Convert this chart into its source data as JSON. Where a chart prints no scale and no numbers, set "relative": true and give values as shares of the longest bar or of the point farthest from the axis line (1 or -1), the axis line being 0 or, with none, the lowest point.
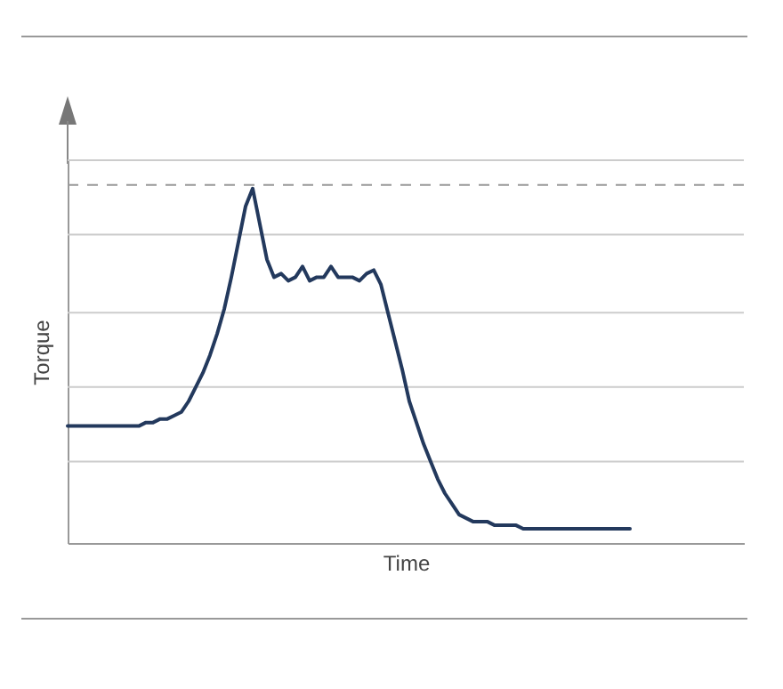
{
  "chart_data": {
    "type": "line",
    "xlabel": "Time",
    "ylabel": "Torque",
    "relative": true,
    "tick_labels": false,
    "line_style": "solid",
    "categories": [
      null,
      null,
      null,
      null,
      null,
      null,
      null,
      null,
      null,
      null,
      null,
      null,
      null,
      null,
      null,
      null,
      null,
      null,
      null,
      null,
      null,
      null,
      null,
      null,
      null,
      null,
      null,
      null,
      null,
      null,
      null,
      null,
      null,
      null,
      null,
      null,
      null,
      null,
      null,
      null,
      null,
      null,
      null,
      null,
      null,
      null,
      null,
      null,
      null,
      null,
      null,
      null,
      null,
      null,
      null,
      null,
      null,
      null,
      null,
      null,
      null,
      null,
      null,
      null,
      null,
      null,
      null,
      null,
      null,
      null,
      null,
      null,
      null,
      null,
      null,
      null,
      null,
      null,
      null,
      null,
      null,
      null,
      null,
      null,
      null,
      null,
      null,
      null,
      null,
      null,
      null,
      null,
      null,
      null,
      null,
      null
    ],
    "series": [
      {
        "color": "#23395d",
        "values": [
          0.33,
          0.33,
          0.33,
          0.33,
          0.33,
          0.33,
          0.33,
          0.33,
          0.33,
          0.33,
          0.33,
          0.34,
          0.34,
          0.35,
          0.35,
          0.36,
          0.37,
          0.4,
          0.44,
          0.48,
          0.53,
          0.59,
          0.66,
          0.75,
          0.85,
          0.95,
          1,
          0.9,
          0.8,
          0.75,
          0.76,
          0.74,
          0.75,
          0.78,
          0.74,
          0.75,
          0.75,
          0.78,
          0.75,
          0.75,
          0.75,
          0.74,
          0.76,
          0.77,
          0.73,
          0.65,
          0.57,
          0.49,
          0.4,
          0.34,
          0.28,
          0.23,
          0.18,
          0.14,
          0.11,
          0.08,
          0.07,
          0.06,
          0.06,
          0.06,
          0.05,
          0.05,
          0.05,
          0.05,
          0.04,
          0.04,
          0.04,
          0.04,
          0.04,
          0.04,
          0.04,
          0.04,
          0.04,
          0.04,
          0.04,
          0.04,
          0.04,
          0.04,
          0.04,
          0.04,
          null,
          null,
          null,
          null,
          null,
          null,
          null,
          null,
          null,
          null,
          null,
          null,
          null,
          null,
          null,
          null
        ]
      }
    ],
    "ref_lines": [
      {
        "axis": "y",
        "value": 1.08,
        "color": "#cccccc"
      },
      {
        "axis": "y",
        "value": 0.87,
        "color": "#cccccc"
      },
      {
        "axis": "y",
        "value": 0.65,
        "color": "#cccccc"
      },
      {
        "axis": "y",
        "value": 0.44,
        "color": "#cccccc"
      },
      {
        "axis": "y",
        "value": 0.23,
        "color": "#cccccc"
      },
      {
        "axis": "y",
        "value": 1.01,
        "color": "#999999",
        "line_style": "dashed"
      }
    ]
  }
}
